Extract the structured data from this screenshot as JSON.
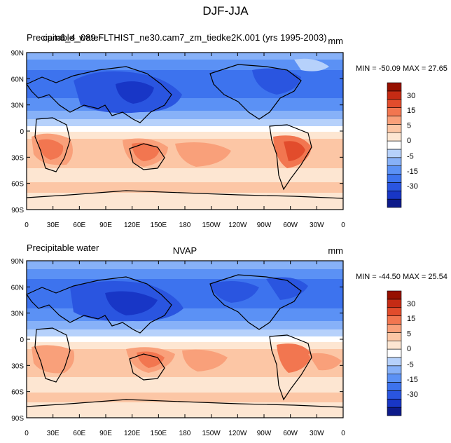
{
  "chart_data": {
    "type": "heatmap",
    "title": "DJF-JJA",
    "color_scale": {
      "colors": [
        "#0d1a8a",
        "#1836c6",
        "#2a55e0",
        "#3d73ee",
        "#5b91f5",
        "#87b1f8",
        "#b6d1fb",
        "#ffffff",
        "#fde6d2",
        "#fcc6a5",
        "#f9a07a",
        "#f27650",
        "#e24c2c",
        "#c52b14",
        "#961000"
      ],
      "tick_labels": [
        "30",
        "15",
        "5",
        "0",
        "-5",
        "-15",
        "-30"
      ]
    },
    "panels": [
      {
        "left_title": "Precipitable_water",
        "center_title": "cam6_4_089.FLTHIST_ne30.cam7_zm_tiedke2K.001 (yrs 1995-2003)",
        "right_title": "mm",
        "min_max": "MIN = -50.09 MAX =  27.65",
        "lat_labels": [
          "90N",
          "60N",
          "30N",
          "0",
          "30S",
          "60S",
          "90S"
        ],
        "lon_labels": [
          "0",
          "30E",
          "60E",
          "90E",
          "120E",
          "150E",
          "180",
          "150W",
          "120W",
          "90W",
          "60W",
          "30W",
          "0"
        ]
      },
      {
        "left_title": "Precipitable water",
        "center_title": "NVAP",
        "right_title": "mm",
        "min_max": "MIN = -44.50 MAX =  25.54",
        "lat_labels": [
          "90N",
          "60N",
          "30N",
          "0",
          "30S",
          "60S",
          "90S"
        ],
        "lon_labels": [
          "0",
          "30E",
          "60E",
          "90E",
          "120E",
          "150E",
          "180",
          "150W",
          "120W",
          "90W",
          "60W",
          "30W",
          "0"
        ]
      }
    ]
  }
}
